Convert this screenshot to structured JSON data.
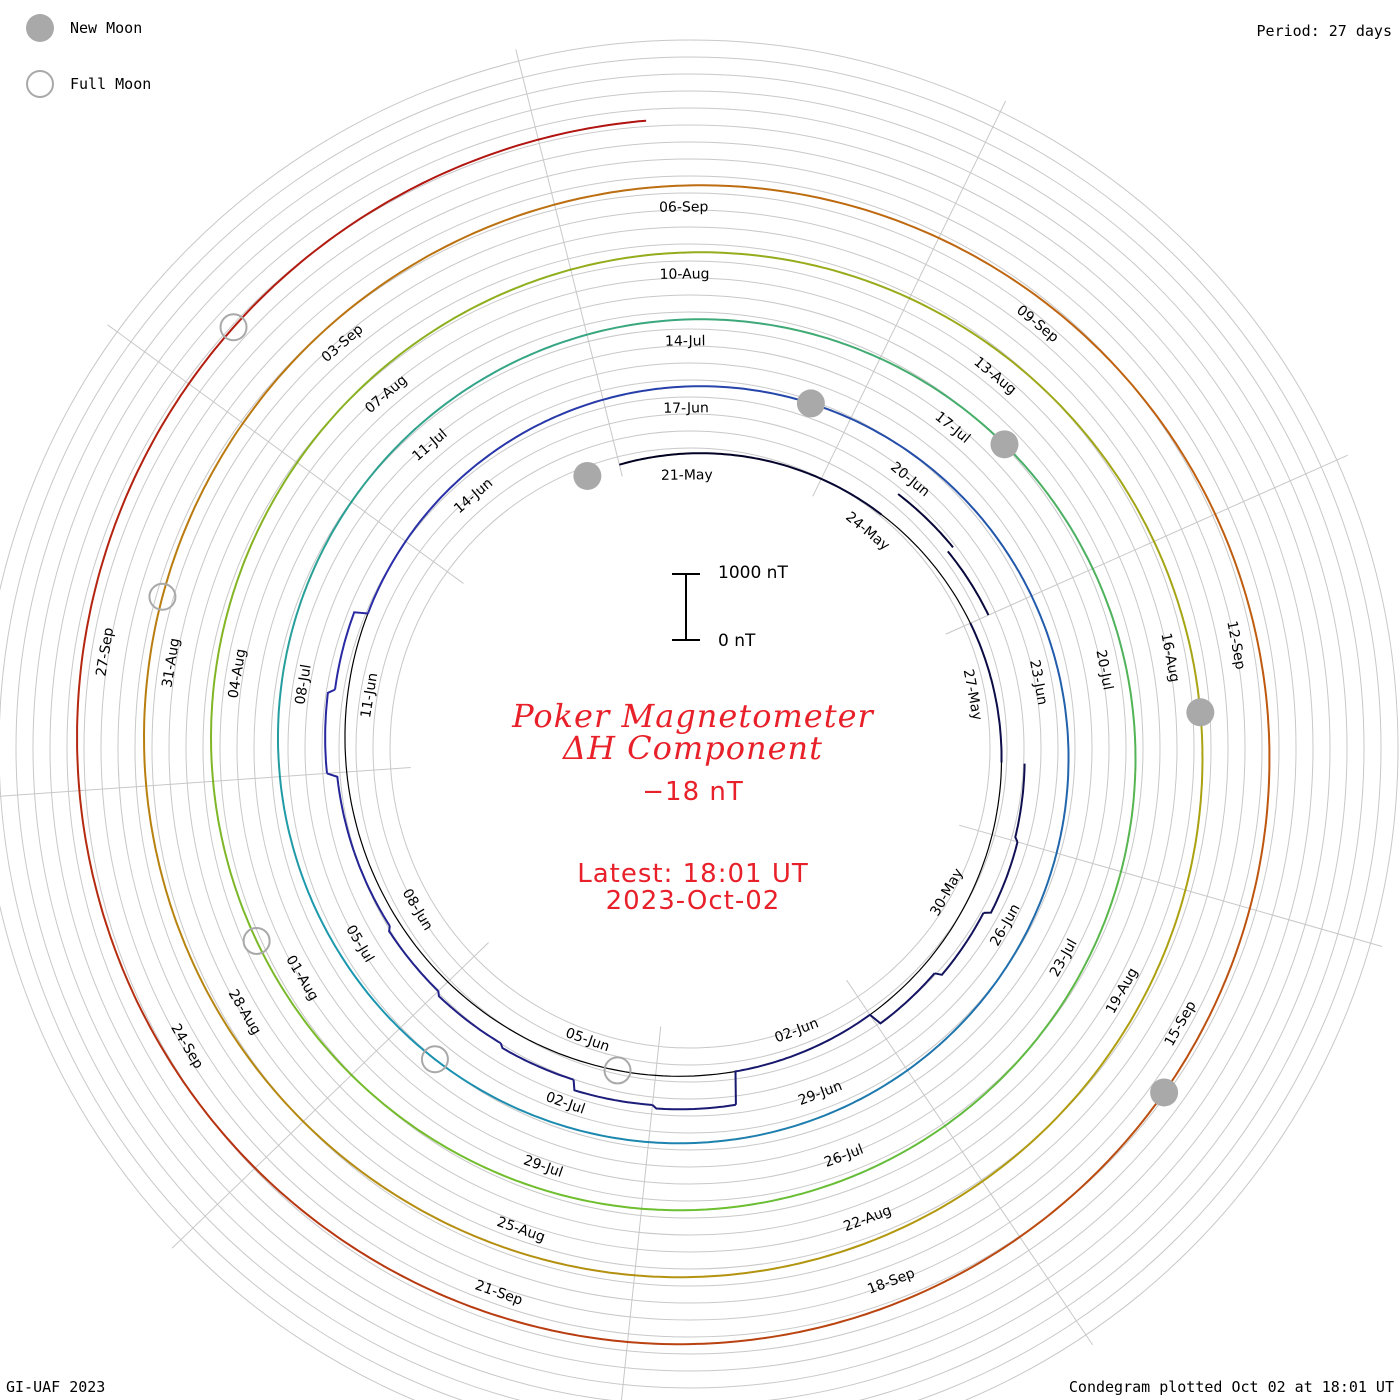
{
  "legend": {
    "new_moon_label": "New Moon",
    "full_moon_label": "Full Moon"
  },
  "period_label": "Period: 27 days",
  "credit_label": "GI-UAF 2023",
  "footer_label": "Condegram plotted Oct 02 at 18:01 UT",
  "title_line1": "Poker Magnetometer",
  "title_line2": "ΔH Component",
  "current_value": "−18 nT",
  "latest_line1": "Latest: 18:01 UT",
  "latest_line2": "2023-Oct-02",
  "scale": {
    "top_label": "1000 nT",
    "bottom_label": "0 nT"
  },
  "chart_data": {
    "type": "line",
    "title": "Poker Magnetometer ΔH Component",
    "period_days": 27,
    "scale_bar_nT": 1000,
    "start_date": "2023-05-20",
    "end_date": "2023-10-02",
    "latest_value_nT": -18,
    "colors": {
      "spiral": [
        "#000020",
        "#2a2aa8",
        "#1a98b0",
        "#6cc030",
        "#b0a010",
        "#c06010",
        "#b01010"
      ],
      "moon": "#a9a9a9",
      "title": "#e8202a"
    },
    "series": [
      {
        "values": [
          0,
          0,
          0,
          0,
          400,
          300,
          0,
          0,
          350,
          400,
          300,
          200,
          0,
          0,
          500,
          450,
          300,
          250,
          200,
          150,
          150,
          300,
          200,
          0,
          0,
          0,
          0,
          0,
          0,
          0,
          0,
          0,
          0,
          0,
          0,
          0,
          0,
          0,
          0,
          0,
          0,
          0,
          0,
          0,
          0,
          0,
          0,
          0,
          0,
          0,
          0,
          0,
          0,
          0,
          0,
          0,
          0,
          0,
          0,
          0,
          0,
          0,
          0,
          0,
          0,
          0,
          0,
          0,
          0,
          0,
          0,
          0,
          0,
          0,
          0,
          0,
          0,
          0,
          0,
          0,
          0,
          0,
          0,
          0,
          0,
          0,
          0,
          0,
          0,
          0,
          0,
          0,
          0,
          0,
          0,
          0,
          0,
          0,
          0,
          0,
          0,
          0,
          0,
          0,
          0,
          0,
          0,
          0,
          0,
          0,
          0,
          0,
          0,
          0,
          0,
          0,
          0,
          0,
          0,
          0,
          0,
          0,
          0,
          0,
          0,
          0,
          0,
          0,
          0,
          0,
          0,
          0,
          0,
          0,
          0,
          0,
          0,
          0
        ]
      }
    ],
    "date_labels": [
      "21-May",
      "24-May",
      "27-May",
      "30-May",
      "02-Jun",
      "05-Jun",
      "08-Jun",
      "11-Jun",
      "14-Jun",
      "17-Jun",
      "20-Jun",
      "23-Jun",
      "26-Jun",
      "29-Jun",
      "02-Jul",
      "05-Jul",
      "08-Jul",
      "11-Jul",
      "14-Jul",
      "17-Jul",
      "20-Jul",
      "23-Jul",
      "26-Jul",
      "29-Jul",
      "01-Aug",
      "04-Aug",
      "07-Aug",
      "10-Aug",
      "13-Aug",
      "16-Aug",
      "19-Aug",
      "22-Aug",
      "25-Aug",
      "28-Aug",
      "31-Aug",
      "03-Sep",
      "06-Sep",
      "09-Sep",
      "12-Sep",
      "15-Sep",
      "18-Sep",
      "21-Sep",
      "24-Sep",
      "27-Sep"
    ],
    "new_moons": [
      "2023-05-19",
      "2023-06-18",
      "2023-07-17",
      "2023-08-16",
      "2023-09-15"
    ],
    "full_moons": [
      "2023-06-04",
      "2023-07-03",
      "2023-08-01",
      "2023-08-31",
      "2023-09-29"
    ],
    "grid": true,
    "legend_position": "top-left"
  }
}
